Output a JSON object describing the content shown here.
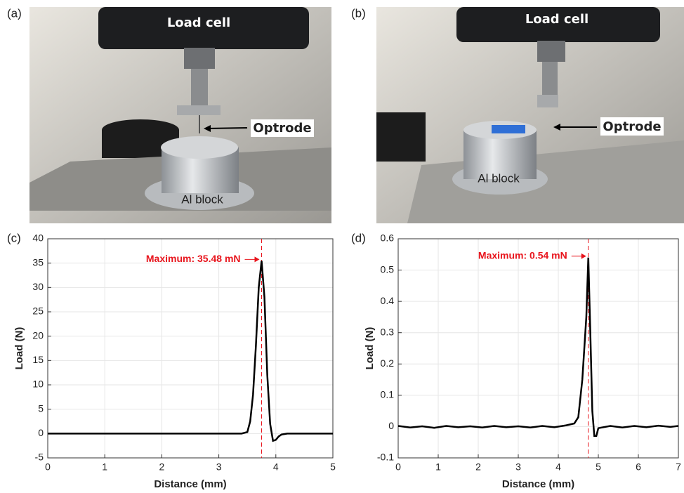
{
  "photos": [
    {
      "panel_label": "(a)",
      "load_cell": "Load cell",
      "optrode": "Optrode",
      "block": "Al block"
    },
    {
      "panel_label": "(b)",
      "load_cell": "Load cell",
      "optrode": "Optrode",
      "block": "Al block"
    }
  ],
  "chart_data": [
    {
      "type": "line",
      "panel_label": "(c)",
      "x_label": "Distance (mm)",
      "y_label": "Load (N)",
      "x": [
        0,
        1,
        2,
        3,
        3.4,
        3.5,
        3.55,
        3.6,
        3.65,
        3.7,
        3.75,
        3.8,
        3.85,
        3.9,
        3.95,
        4.0,
        4.05,
        4.1,
        4.2,
        4.5,
        5
      ],
      "values": [
        0,
        0,
        0,
        0,
        0,
        0.3,
        2.5,
        8,
        18,
        30,
        35.48,
        28,
        12,
        2,
        -1.5,
        -1.3,
        -0.6,
        -0.2,
        0,
        0,
        0
      ],
      "color": "#000000",
      "xlim": [
        0,
        5
      ],
      "xticks": [
        0,
        1,
        2,
        3,
        4,
        5
      ],
      "ylim": [
        -5,
        40
      ],
      "yticks": [
        -5,
        0,
        5,
        10,
        15,
        20,
        25,
        30,
        35,
        40
      ],
      "grid": true,
      "annotation": {
        "text": "Maximum: 35.48 mN",
        "x": 3.75,
        "y": 35.48,
        "color": "#e8141c"
      }
    },
    {
      "type": "line",
      "panel_label": "(d)",
      "x_label": "Distance (mm)",
      "y_label": "Load (N)",
      "x": [
        0,
        0.3,
        0.6,
        0.9,
        1.2,
        1.5,
        1.8,
        2.1,
        2.4,
        2.7,
        3.0,
        3.3,
        3.6,
        3.9,
        4.2,
        4.4,
        4.5,
        4.6,
        4.7,
        4.75,
        4.8,
        4.85,
        4.9,
        4.95,
        5.0,
        5.3,
        5.6,
        5.9,
        6.2,
        6.5,
        6.8,
        7.0
      ],
      "values": [
        0.002,
        -0.003,
        0.001,
        -0.004,
        0.002,
        -0.002,
        0.001,
        -0.003,
        0.002,
        -0.002,
        0.001,
        -0.003,
        0.002,
        -0.002,
        0.004,
        0.01,
        0.03,
        0.15,
        0.35,
        0.54,
        0.3,
        0.05,
        -0.03,
        -0.03,
        -0.005,
        0.002,
        -0.003,
        0.002,
        -0.002,
        0.003,
        -0.001,
        0.002
      ],
      "color": "#000000",
      "xlim": [
        0,
        7
      ],
      "xticks": [
        0,
        1,
        2,
        3,
        4,
        5,
        6,
        7
      ],
      "ylim": [
        -0.1,
        0.6
      ],
      "yticks": [
        -0.1,
        0,
        0.1,
        0.2,
        0.3,
        0.4,
        0.5,
        0.6
      ],
      "grid": true,
      "annotation": {
        "text": "Maximum: 0.54 mN",
        "x": 4.75,
        "y": 0.54,
        "color": "#e8141c"
      }
    }
  ]
}
